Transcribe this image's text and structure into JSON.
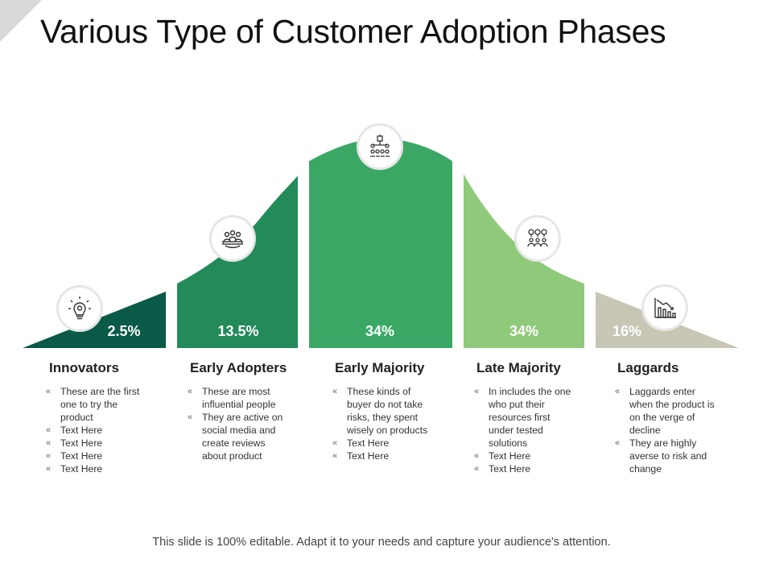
{
  "title": "Various Type of Customer Adoption Phases",
  "footer": "This slide is 100% editable. Adapt it to your needs and capture your audience's attention.",
  "colors": {
    "innovators": "#0a5a48",
    "early_adopters": "#238a5a",
    "early_majority": "#3aa864",
    "late_majority": "#8fc97a",
    "laggards": "#c8c6b4"
  },
  "phases": [
    {
      "name": "Innovators",
      "percent": "2.5%",
      "icon": "lightbulb-gear-icon",
      "bullets": [
        "These are the first one to try the product",
        "Text Here",
        "Text Here",
        "Text Here",
        "Text Here"
      ]
    },
    {
      "name": "Early Adopters",
      "percent": "13.5%",
      "icon": "meeting-people-icon",
      "bullets": [
        "These are most influential people",
        "They are active on social media and create reviews about product"
      ]
    },
    {
      "name": "Early Majority",
      "percent": "34%",
      "icon": "team-hierarchy-icon",
      "bullets": [
        "These kinds of buyer do not take risks, they spent wisely on products",
        "Text Here",
        "Text Here"
      ]
    },
    {
      "name": "Late Majority",
      "percent": "34%",
      "icon": "people-location-icon",
      "bullets": [
        "In includes the one who put their resources first under tested solutions",
        "Text Here",
        "Text Here"
      ]
    },
    {
      "name": "Laggards",
      "percent": "16%",
      "icon": "declining-chart-icon",
      "bullets": [
        "Laggards enter when the product is on the verge of decline",
        "They are highly averse to risk and change"
      ]
    }
  ]
}
